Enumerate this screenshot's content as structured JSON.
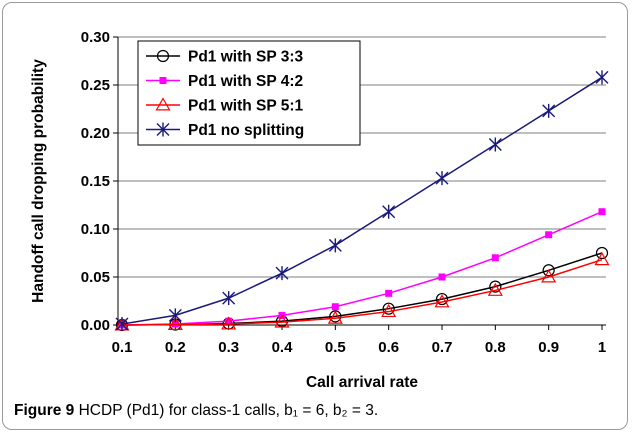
{
  "caption": {
    "label": "Figure 9",
    "text": "HCDP (Pd1) for class-1 calls, b₁ = 6, b₂ = 3."
  },
  "chart_data": {
    "type": "line",
    "xlabel": "Call arrival rate",
    "ylabel": "Handoff call dropping probability",
    "xlim": [
      0.1,
      1.0
    ],
    "ylim": [
      0,
      0.3
    ],
    "x": [
      0.1,
      0.2,
      0.3,
      0.4,
      0.5,
      0.6,
      0.7,
      0.8,
      0.9,
      1.0
    ],
    "x_tick_labels": [
      "0.1",
      "0.2",
      "0.3",
      "0.4",
      "0.5",
      "0.6",
      "0.7",
      "0.8",
      "0.9",
      "1"
    ],
    "y_ticks": [
      0,
      0.05,
      0.1,
      0.15,
      0.2,
      0.25,
      0.3
    ],
    "y_tick_labels": [
      "0.00",
      "0.05",
      "0.10",
      "0.15",
      "0.20",
      "0.25",
      "0.30"
    ],
    "grid": "horizontal",
    "legend_position": "top-left",
    "series": [
      {
        "name": "Pd1 with SP 3:3",
        "marker": "circle",
        "color": "#000000",
        "values": [
          0.0,
          0.0005,
          0.0015,
          0.004,
          0.009,
          0.017,
          0.027,
          0.04,
          0.057,
          0.075
        ]
      },
      {
        "name": "Pd1 with SP 4:2",
        "marker": "square",
        "color": "#ff00ff",
        "values": [
          0.0,
          0.001,
          0.004,
          0.01,
          0.019,
          0.033,
          0.05,
          0.07,
          0.094,
          0.118
        ]
      },
      {
        "name": "Pd1 with SP 5:1",
        "marker": "triangle",
        "color": "#ff0000",
        "values": [
          0.0,
          0.0005,
          0.001,
          0.003,
          0.007,
          0.014,
          0.024,
          0.036,
          0.05,
          0.068
        ]
      },
      {
        "name": "Pd1 no splitting",
        "marker": "star",
        "color": "#1a1a7a",
        "values": [
          0.001,
          0.01,
          0.028,
          0.054,
          0.083,
          0.118,
          0.153,
          0.188,
          0.223,
          0.258
        ]
      }
    ]
  }
}
